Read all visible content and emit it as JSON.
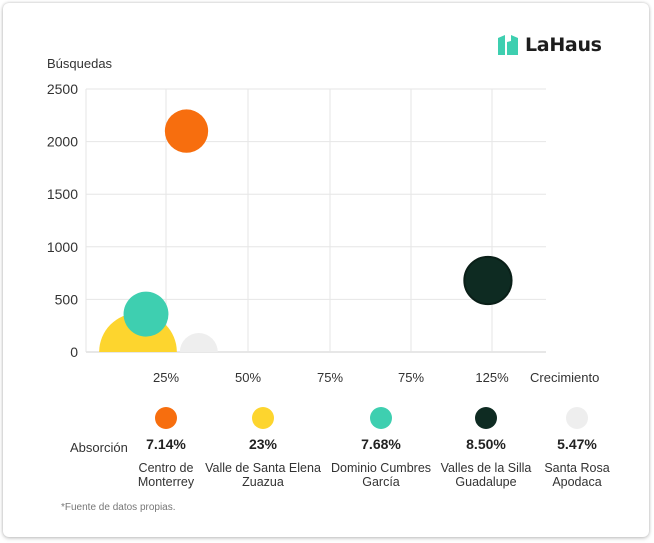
{
  "brand": {
    "name": "LaHaus",
    "color": "#3ecfb0"
  },
  "chart_data": {
    "type": "bubble",
    "ylabel": "Búsquedas",
    "xlabel": "Crecimiento",
    "ylim": [
      0,
      2500
    ],
    "yticks": [
      "2500",
      "2000",
      "1500",
      "1000",
      "500",
      "0"
    ],
    "xticks": [
      "25%",
      "50%",
      "75%",
      "75%",
      "125%"
    ],
    "grid": true,
    "size_label": "Absorción",
    "series": [
      {
        "name": "Centro de Monterrey",
        "x": 1.25,
        "y": 2100,
        "absorption": "7.14%",
        "color": "#f76e0e"
      },
      {
        "name": "Valle de Santa Elena Zuazua",
        "x": 0.65,
        "y": 0,
        "absorption": "23%",
        "color": "#fdd52e"
      },
      {
        "name": "Dominio Cumbres García",
        "x": 0.75,
        "y": 360,
        "absorption": "7.68%",
        "color": "#3ecfb0"
      },
      {
        "name": "Valles de la Silla Guadalupe",
        "x": 4.95,
        "y": 680,
        "absorption": "8.50%",
        "color": "#0e2b22"
      },
      {
        "name": "Santa Rosa Apodaca",
        "x": 1.4,
        "y": 0,
        "absorption": "5.47%",
        "color": "#eeeeee"
      }
    ]
  },
  "legend": [
    {
      "value": "7.14%",
      "line1": "Centro de",
      "line2": "Monterrey",
      "color": "#f76e0e"
    },
    {
      "value": "23%",
      "line1": "Valle de Santa Elena",
      "line2": "Zuazua",
      "color": "#fdd52e"
    },
    {
      "value": "7.68%",
      "line1": "Dominio Cumbres",
      "line2": "García",
      "color": "#3ecfb0"
    },
    {
      "value": "8.50%",
      "line1": "Valles de la Silla",
      "line2": "Guadalupe",
      "color": "#0e2b22"
    },
    {
      "value": "5.47%",
      "line1": "Santa Rosa",
      "line2": "Apodaca",
      "color": "#eeeeee"
    }
  ],
  "footnote": "*Fuente de datos propias."
}
